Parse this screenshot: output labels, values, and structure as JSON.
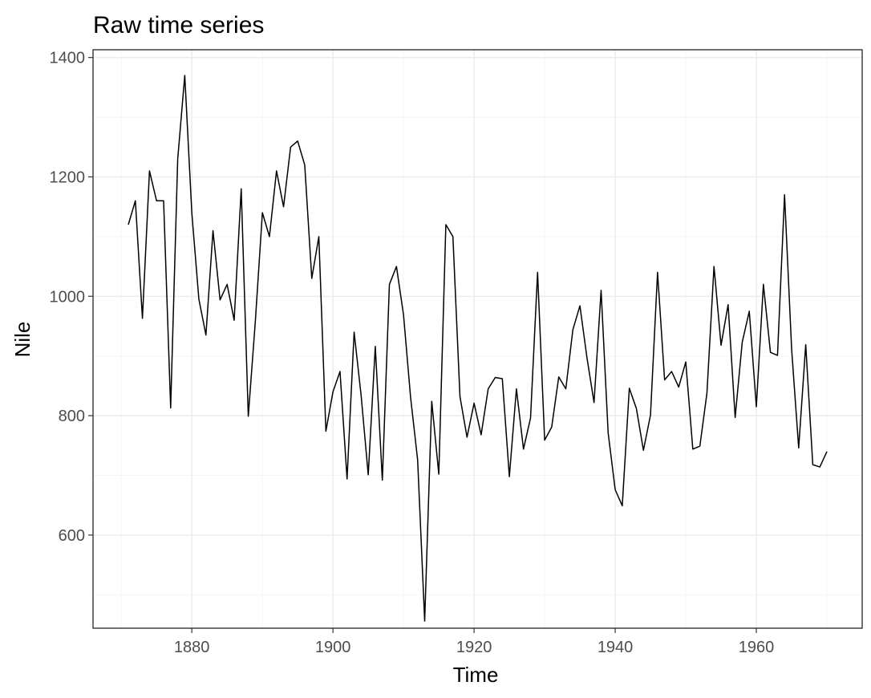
{
  "chart_data": {
    "type": "line",
    "title": "Raw time series",
    "xlabel": "Time",
    "ylabel": "Nile",
    "xlim": [
      1866,
      1975
    ],
    "ylim": [
      444,
      1413
    ],
    "x_ticks": [
      1880,
      1900,
      1920,
      1940,
      1960
    ],
    "x_tick_labels": [
      "1880",
      "1900",
      "1920",
      "1940",
      "1960"
    ],
    "y_ticks": [
      600,
      800,
      1000,
      1200,
      1400
    ],
    "y_tick_labels": [
      "600",
      "800",
      "1000",
      "1200",
      "1400"
    ],
    "grid": true,
    "legend": "none",
    "series": [
      {
        "color": "#000000",
        "x": [
          1871,
          1872,
          1873,
          1874,
          1875,
          1876,
          1877,
          1878,
          1879,
          1880,
          1881,
          1882,
          1883,
          1884,
          1885,
          1886,
          1887,
          1888,
          1889,
          1890,
          1891,
          1892,
          1893,
          1894,
          1895,
          1896,
          1897,
          1898,
          1899,
          1900,
          1901,
          1902,
          1903,
          1904,
          1905,
          1906,
          1907,
          1908,
          1909,
          1910,
          1911,
          1912,
          1913,
          1914,
          1915,
          1916,
          1917,
          1918,
          1919,
          1920,
          1921,
          1922,
          1923,
          1924,
          1925,
          1926,
          1927,
          1928,
          1929,
          1930,
          1931,
          1932,
          1933,
          1934,
          1935,
          1936,
          1937,
          1938,
          1939,
          1940,
          1941,
          1942,
          1943,
          1944,
          1945,
          1946,
          1947,
          1948,
          1949,
          1950,
          1951,
          1952,
          1953,
          1954,
          1955,
          1956,
          1957,
          1958,
          1959,
          1960,
          1961,
          1962,
          1963,
          1964,
          1965,
          1966,
          1967,
          1968,
          1969,
          1970
        ],
        "values": [
          1120,
          1160,
          963,
          1210,
          1160,
          1160,
          813,
          1230,
          1370,
          1140,
          995,
          935,
          1110,
          994,
          1020,
          960,
          1180,
          799,
          958,
          1140,
          1100,
          1210,
          1150,
          1250,
          1260,
          1220,
          1030,
          1100,
          774,
          840,
          874,
          694,
          940,
          833,
          701,
          916,
          692,
          1020,
          1050,
          969,
          831,
          726,
          456,
          824,
          702,
          1120,
          1100,
          832,
          764,
          821,
          768,
          845,
          864,
          862,
          698,
          845,
          744,
          796,
          1040,
          759,
          781,
          865,
          845,
          944,
          984,
          897,
          822,
          1010,
          771,
          676,
          649,
          846,
          812,
          742,
          801,
          1040,
          860,
          874,
          848,
          890,
          744,
          749,
          838,
          1050,
          918,
          986,
          797,
          923,
          975,
          815,
          1020,
          906,
          901,
          1170,
          912,
          746,
          919,
          718,
          714,
          740
        ]
      }
    ]
  }
}
